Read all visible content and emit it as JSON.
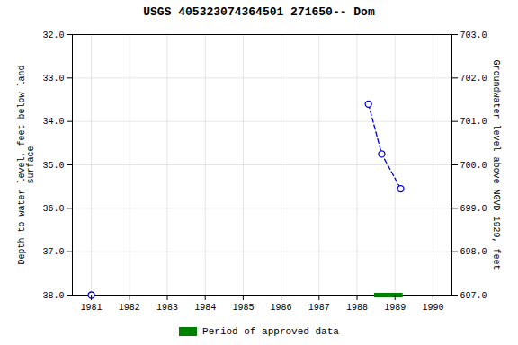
{
  "chart_data": {
    "type": "line",
    "title": "USGS 405323074364501 271650-- Dom",
    "ylabel": "Depth to water level, feet below land\nsurface",
    "y2label": "Groundwater level above NGVD 1929, feet",
    "xlim": [
      1980.5,
      1990.5
    ],
    "ylim": [
      38.0,
      32.0
    ],
    "y2lim": [
      697.0,
      703.0
    ],
    "xticks": [
      1981,
      1982,
      1983,
      1984,
      1985,
      1986,
      1987,
      1988,
      1989,
      1990
    ],
    "yticks": [
      {
        "value": 32.0,
        "label": "32.0"
      },
      {
        "value": 33.0,
        "label": "33.0"
      },
      {
        "value": 34.0,
        "label": "34.0"
      },
      {
        "value": 35.0,
        "label": "35.0"
      },
      {
        "value": 36.0,
        "label": "36.0"
      },
      {
        "value": 37.0,
        "label": "37.0"
      },
      {
        "value": 38.0,
        "label": "38.0"
      }
    ],
    "y2ticks": [
      {
        "value": 697.0,
        "label": "697.0"
      },
      {
        "value": 698.0,
        "label": "698.0"
      },
      {
        "value": 699.0,
        "label": "699.0"
      },
      {
        "value": 700.0,
        "label": "700.0"
      },
      {
        "value": 701.0,
        "label": "701.0"
      },
      {
        "value": 702.0,
        "label": "702.0"
      },
      {
        "value": 703.0,
        "label": "703.0"
      }
    ],
    "grid": true,
    "legend": "bottom",
    "series": [
      {
        "type": "scatter",
        "color": "#0000cc",
        "marker": "circle",
        "x": [
          1981.0
        ],
        "values": [
          38.0
        ]
      },
      {
        "type": "line",
        "color": "#0000cc",
        "marker": "circle",
        "line_style": "dashed",
        "x": [
          1988.3,
          1988.65,
          1989.15
        ],
        "values": [
          33.6,
          34.75,
          35.55
        ]
      },
      {
        "name": "Period of approved data",
        "type": "line",
        "color": "#008000",
        "line_style": "solid",
        "x": [
          1988.45,
          1989.2
        ],
        "values": [
          38.0,
          38.0
        ]
      }
    ]
  }
}
